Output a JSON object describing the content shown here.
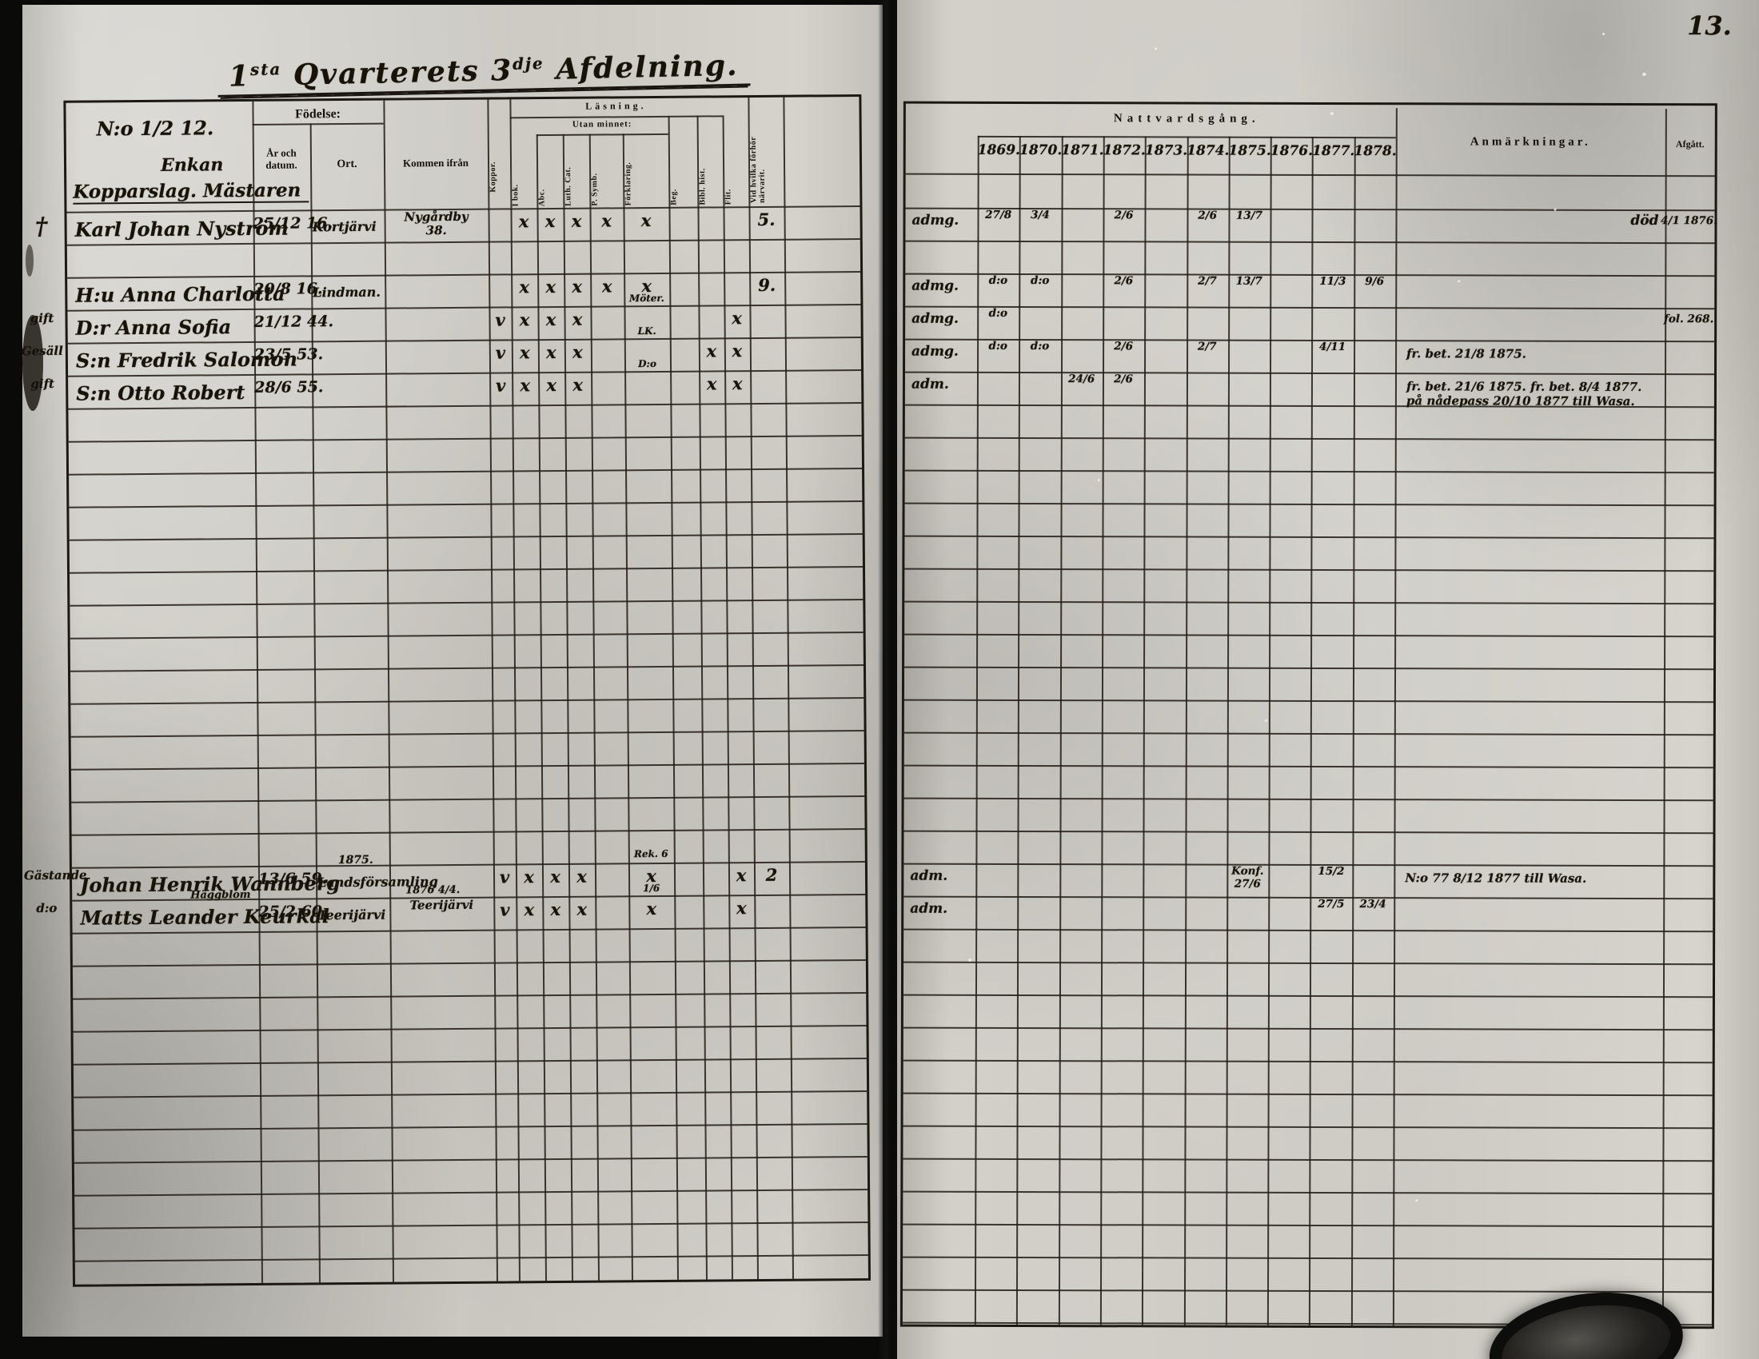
{
  "page": {
    "folio_number": "13."
  },
  "title": {
    "segments": [
      {
        "t": "1"
      },
      {
        "t": "sta",
        "sup": true
      },
      {
        "t": " Qvarterets "
      },
      {
        "t": "3"
      },
      {
        "t": "dje",
        "sup": true
      },
      {
        "t": " Afdelning."
      }
    ]
  },
  "left_table": {
    "header": {
      "no_line": "N:o 1/2 12.",
      "occupation_line1": "Enkan",
      "occupation_line2": "Kopparslag. Mästaren",
      "fodelse": "Födelse:",
      "ar_och_datum": "År och datum.",
      "ort": "Ort.",
      "kommen_ifran": "Kommen ifrån",
      "lasning": "Läsning.",
      "utan_minnet": "Utan minnet:",
      "rot": [
        {
          "col": "k1",
          "label": "Koppor."
        },
        {
          "col": "r1",
          "label": "I bok."
        },
        {
          "col": "r2",
          "label": "Abc."
        },
        {
          "col": "r3",
          "label": "Luth. Cat."
        },
        {
          "col": "r4",
          "label": "P. Symb."
        },
        {
          "col": "r5",
          "label": "Förklaring."
        },
        {
          "col": "r6",
          "label": "Beg."
        },
        {
          "col": "r7",
          "label": "Bibl. hist."
        },
        {
          "col": "r8",
          "label": "Flit."
        },
        {
          "col": "r9",
          "label": "Vid hvilka förhör närvarit."
        }
      ]
    }
  },
  "right_table": {
    "header": {
      "nattvardsgang": "Nattvardsgång.",
      "years": [
        "1869.",
        "1870.",
        "1871.",
        "1872.",
        "1873.",
        "1874.",
        "1875.",
        "1876.",
        "1877.",
        "1878."
      ],
      "anmarkningar": "Anmärkningar.",
      "afgatt": "Afgått."
    }
  },
  "rows": [
    {
      "band": 0,
      "margin": "†",
      "name": "Karl Johan Nyström",
      "born": "25/12 16.",
      "ort": "Kortjärvi",
      "kommen": "Nygårdby\n38.",
      "marks": {
        "r1": "x",
        "r2": "x",
        "r3": "x",
        "r4": "x",
        "r5": "x",
        "r9": "5."
      },
      "adm": "admg.",
      "years": {
        "1869": "27/8",
        "1870": "3/4",
        "1872": "2/6",
        "1874": "2/6",
        "1875": "13/7"
      },
      "anm_right": "död",
      "afgatt": "4/1 1876."
    },
    {
      "band": 2,
      "margin": "",
      "name": "H:u Anna Charlotta",
      "born": "20/8 16.",
      "ort": "Lindman.",
      "marks": {
        "r1": "x",
        "r2": "x",
        "r3": "x",
        "r4": "x",
        "r5": "x",
        "r9": "9."
      },
      "note_r5_below": "Möter.",
      "adm": "admg.",
      "years": {
        "1869": "d:o",
        "1870": "d:o",
        "1872": "2/6",
        "1874": "2/7",
        "1875": "13/7",
        "1877": "11/3",
        "1878": "9/6"
      }
    },
    {
      "band": 3,
      "margin": "gift",
      "name": "D:r Anna Sofia",
      "born": "21/12 44.",
      "marks": {
        "k1": "v",
        "r1": "x",
        "r2": "x",
        "r3": "x",
        "r8": "x"
      },
      "note_r5_below": "LK.",
      "adm": "admg.",
      "years": {
        "1869": "d:o"
      },
      "afgatt": "fol. 268."
    },
    {
      "band": 4,
      "margin": "Gesäll",
      "name": "S:n Fredrik Salomon",
      "born": "23/5 53.",
      "marks": {
        "k1": "v",
        "r1": "x",
        "r2": "x",
        "r3": "x",
        "r7": "x",
        "r8": "x"
      },
      "note_r5_below": "D:o",
      "adm": "admg.",
      "years": {
        "1869": "d:o",
        "1870": "d:o",
        "1872": "2/6",
        "1874": "2/7",
        "1877": "4/11"
      },
      "anm": "fr. bet. 21/8 1875."
    },
    {
      "band": 5,
      "margin": "gift",
      "name": "S:n Otto Robert",
      "born": "28/6 55.",
      "marks": {
        "k1": "v",
        "r1": "x",
        "r2": "x",
        "r3": "x",
        "r7": "x",
        "r8": "x"
      },
      "adm": "adm.",
      "years": {
        "1871": "24/6",
        "1872": "2/6"
      },
      "anm": "fr. bet. 21/6 1875.  fr. bet. 8/4 1877.",
      "anm2": "på nådepass 20/10 1877 till Wasa."
    },
    {
      "band": 20,
      "margin": "Gästande",
      "name": "Johan Henrik Wannberg",
      "born": "13/6 59.",
      "ort": "Landsförsamling",
      "ort_note": "1875.",
      "marks": {
        "k1": "v",
        "r1": "x",
        "r2": "x",
        "r3": "x",
        "r5": "x",
        "r8": "x",
        "r9": "2"
      },
      "note_r5_above": "Rek. 6",
      "note_r5_below": "1/6",
      "adm": "adm.",
      "years": {
        "1875": "Konf.\n27/6",
        "1877": "15/2"
      },
      "anm": "N:o 77  8/12 1877 till Wasa."
    },
    {
      "band": 21,
      "margin": "d:o",
      "name": "Matts Leander Keurkal",
      "name_note": "Häggblom",
      "born": "25/2 60.",
      "ort": "Teerijärvi",
      "kommen": "Teerijärvi",
      "kommen_note": "1876 4/4.",
      "marks": {
        "k1": "v",
        "r1": "x",
        "r2": "x",
        "r3": "x",
        "r5": "x",
        "r8": "x"
      },
      "adm": "adm.",
      "years": {
        "1877": "27/5",
        "1878": "23/4"
      }
    }
  ]
}
